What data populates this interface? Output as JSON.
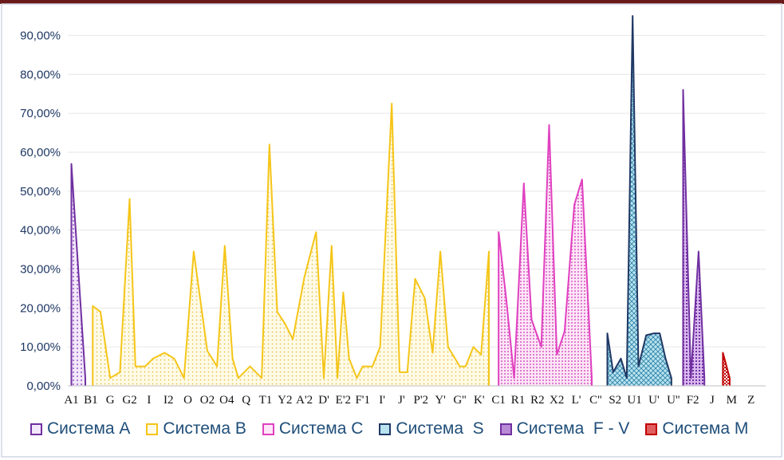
{
  "chart_data": {
    "type": "area",
    "ylim": [
      0,
      0.9
    ],
    "y_tick_labels": [
      "0,00%",
      "10,00%",
      "20,00%",
      "30,00%",
      "40,00%",
      "50,00%",
      "60,00%",
      "70,00%",
      "80,00%",
      "90,00%"
    ],
    "x_tick_labels": [
      "A1",
      "B1",
      "G",
      "G2",
      "I",
      "I2",
      "O",
      "O2",
      "O4",
      "Q",
      "T1",
      "Y2",
      "A'2",
      "D'",
      "E'2",
      "F'1",
      "I'",
      "J'",
      "P'2",
      "Y'",
      "G''",
      "K'",
      "C1",
      "R1",
      "R2",
      "X2",
      "L'",
      "C''",
      "S2",
      "U1",
      "U'",
      "U''",
      "F2",
      "J",
      "M",
      "Z"
    ],
    "grid": true,
    "legend_position": "bottom",
    "series": [
      {
        "name": "Система A",
        "color": "#7030a0",
        "x": [
          0,
          0.72
        ],
        "values": [
          0.57,
          0.02
        ]
      },
      {
        "name": "Система B",
        "color": "#f5c518",
        "x": [
          1.1,
          1.5,
          2,
          2.5,
          3,
          3.3,
          3.8,
          4.2,
          4.8,
          5.3,
          5.8,
          6.3,
          7,
          7.5,
          7.9,
          8.3,
          8.6,
          9.2,
          9.8,
          10.2,
          10.6,
          11,
          11.4,
          12,
          12.6,
          13,
          13.4,
          13.7,
          14,
          14.3,
          14.7,
          15,
          15.5,
          15.9,
          16.5,
          16.9,
          17.3,
          17.7,
          18.2,
          18.6,
          19,
          19.4,
          20,
          20.3,
          20.7,
          21.1,
          21.5
        ],
        "values": [
          0.205,
          0.19,
          0.02,
          0.035,
          0.48,
          0.05,
          0.05,
          0.07,
          0.085,
          0.07,
          0.02,
          0.345,
          0.09,
          0.05,
          0.36,
          0.07,
          0.02,
          0.05,
          0.02,
          0.62,
          0.19,
          0.16,
          0.12,
          0.28,
          0.395,
          0.02,
          0.36,
          0.02,
          0.24,
          0.07,
          0.02,
          0.05,
          0.05,
          0.1,
          0.725,
          0.035,
          0.035,
          0.275,
          0.225,
          0.085,
          0.345,
          0.1,
          0.05,
          0.05,
          0.1,
          0.08,
          0.345
        ]
      },
      {
        "name": "Система C",
        "color": "#e040c0",
        "x": [
          22,
          22.4,
          22.8,
          23.3,
          23.7,
          24.2,
          24.6,
          25,
          25.4,
          25.9,
          26.3,
          26.8
        ],
        "values": [
          0.395,
          0.22,
          0.02,
          0.52,
          0.17,
          0.1,
          0.67,
          0.08,
          0.14,
          0.465,
          0.53,
          0.02
        ]
      },
      {
        "name": "Система  S",
        "color": "#203864",
        "x": [
          27.6,
          27.9,
          28.3,
          28.6,
          28.9,
          29.2,
          29.6,
          30,
          30.3,
          30.6,
          30.9
        ],
        "values": [
          0.135,
          0.035,
          0.07,
          0.02,
          0.95,
          0.05,
          0.13,
          0.135,
          0.135,
          0.07,
          0.02
        ]
      },
      {
        "name": "Система  F - V",
        "color": "#7030a0",
        "x": [
          31.5,
          31.9,
          32.3,
          32.6
        ],
        "values": [
          0.76,
          0.02,
          0.345,
          0.02
        ]
      },
      {
        "name": "Система M",
        "color": "#c00000",
        "x": [
          33.55,
          33.9
        ],
        "values": [
          0.085,
          0.02
        ]
      }
    ]
  }
}
